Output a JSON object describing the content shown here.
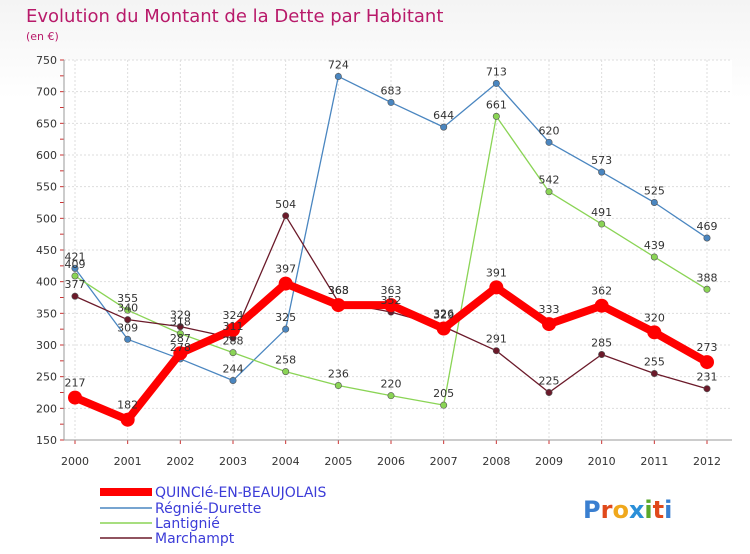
{
  "chart_data": {
    "type": "line",
    "title": "Evolution du Montant de la Dette par Habitant",
    "subtitle": "(en €)",
    "x": [
      "2000",
      "2001",
      "2002",
      "2003",
      "2004",
      "2005",
      "2006",
      "2007",
      "2008",
      "2009",
      "2010",
      "2011",
      "2012"
    ],
    "ylim": [
      150,
      750
    ],
    "yticks": [
      150,
      200,
      250,
      300,
      350,
      400,
      450,
      500,
      550,
      600,
      650,
      700,
      750
    ],
    "grid": true,
    "legend_position": "bottom-left",
    "series": [
      {
        "name": "QUINCIé-EN-BEAUJOLAIS",
        "color": "#ff0000",
        "values": [
          217,
          182,
          287,
          324,
          397,
          363,
          363,
          326,
          391,
          333,
          362,
          320,
          273
        ]
      },
      {
        "name": "Régnié-Durette",
        "color": "#4a86c0",
        "values": [
          421,
          309,
          278,
          244,
          325,
          724,
          683,
          644,
          713,
          620,
          573,
          525,
          469
        ]
      },
      {
        "name": "Lantignié",
        "color": "#8ad455",
        "values": [
          409,
          355,
          318,
          288,
          258,
          236,
          220,
          205,
          661,
          542,
          491,
          439,
          388
        ]
      },
      {
        "name": "Marchampt",
        "color": "#6b1a2a",
        "values": [
          377,
          340,
          329,
          311,
          504,
          368,
          352,
          329,
          291,
          225,
          285,
          255,
          231
        ]
      }
    ]
  },
  "watermark": "Proxiti"
}
